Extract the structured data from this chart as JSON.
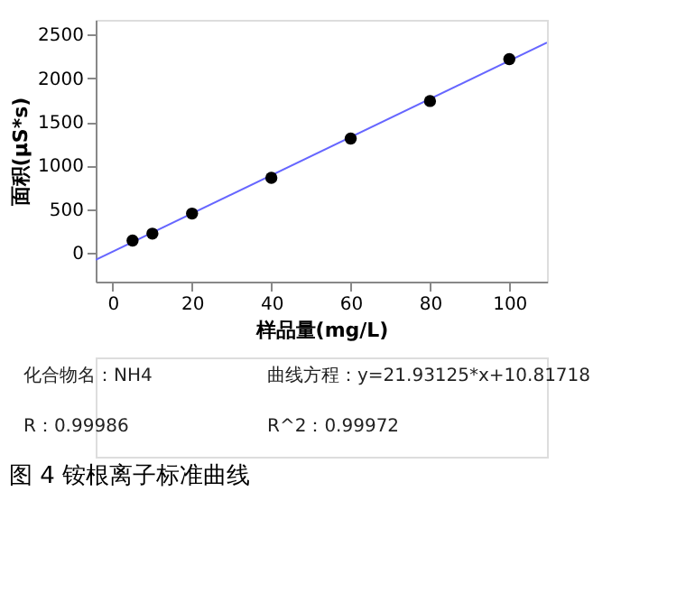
{
  "chart_data": {
    "type": "scatter",
    "title": "图 4 铵根离子标准曲线",
    "xlabel": "样品量(mg/L)",
    "ylabel": "面积(μS*s)",
    "xlim": [
      -4.3,
      109.5
    ],
    "ylim": [
      -330,
      2670
    ],
    "xticks": [
      0,
      20,
      40,
      60,
      80,
      100
    ],
    "yticks": [
      0,
      500,
      1000,
      1500,
      2000,
      2500
    ],
    "grid": false,
    "series": [
      {
        "type": "line",
        "color": "#6666ff",
        "x": [
          -4.3,
          109.5
        ],
        "values": [
          -80,
          2410
        ],
        "line_style": "solid"
      },
      {
        "color": "#000000",
        "x": [
          5,
          10,
          20,
          40,
          60,
          80,
          100
        ],
        "values": [
          140,
          220,
          450,
          860,
          1310,
          1740,
          2220
        ],
        "marker": "circle"
      }
    ],
    "annotations": [
      "化合物名：NH4",
      "曲线方程：y=21.93125*x+10.81718",
      "R：0.99986",
      "R^2：0.99972"
    ]
  }
}
